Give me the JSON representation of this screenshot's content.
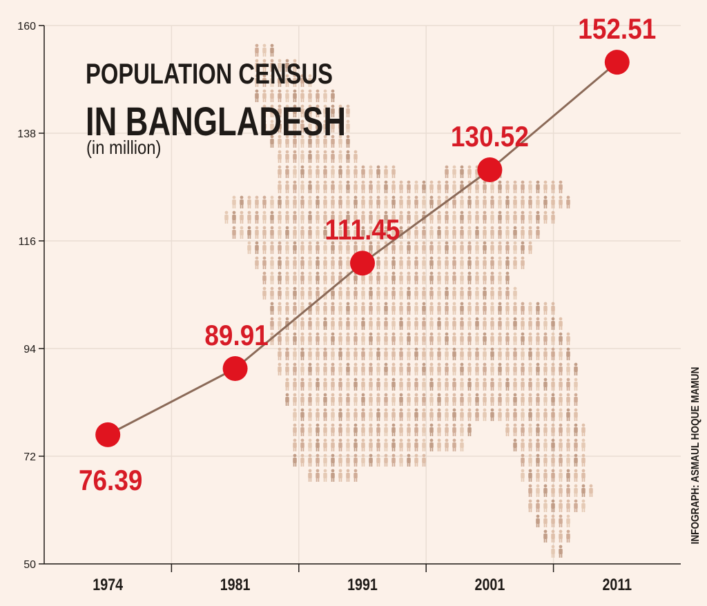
{
  "title_line1": "POPULATION CENSUS",
  "title_line2": "IN BANGLADESH",
  "subtitle": "(in million)",
  "credit": "INFOGRAPH: ASMAUL HOQUE MAMUN",
  "colors": {
    "background": "#fcf1e9",
    "line": "#8b6a58",
    "point": "#e0141f",
    "label": "#d71b26",
    "axis": "#1e1a17",
    "grid": "#e9ddd3",
    "map_figures": "#d8b59d"
  },
  "chart_data": {
    "type": "line",
    "categories": [
      "1974",
      "1981",
      "1991",
      "2001",
      "2011"
    ],
    "values": [
      76.39,
      89.91,
      111.45,
      130.52,
      152.51
    ],
    "value_labels": [
      "76.39",
      "89.91",
      "111.45",
      "130.52",
      "152.51"
    ],
    "y_ticks": [
      "160",
      "138",
      "116",
      "94",
      "72",
      "50"
    ],
    "ylim": [
      50,
      160
    ],
    "grid": true,
    "background_image": "map of Bangladesh made of people figures"
  }
}
